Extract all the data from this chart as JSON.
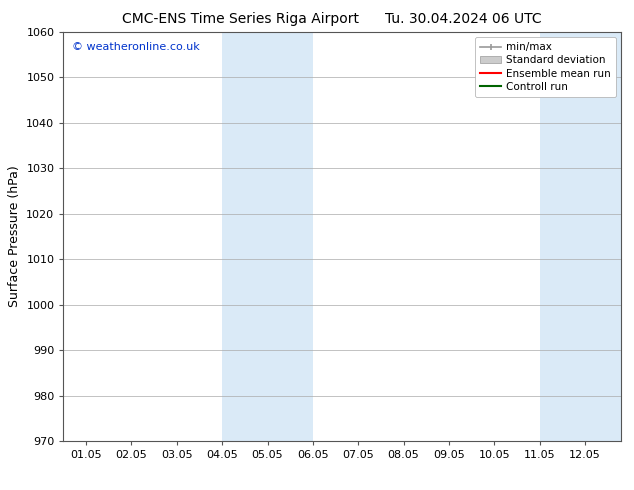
{
  "title_left": "CMC-ENS Time Series Riga Airport",
  "title_right": "Tu. 30.04.2024 06 UTC",
  "ylabel": "Surface Pressure (hPa)",
  "ylim": [
    970,
    1060
  ],
  "yticks": [
    970,
    980,
    990,
    1000,
    1010,
    1020,
    1030,
    1040,
    1050,
    1060
  ],
  "xtick_labels": [
    "01.05",
    "02.05",
    "03.05",
    "04.05",
    "05.05",
    "06.05",
    "07.05",
    "08.05",
    "09.05",
    "10.05",
    "11.05",
    "12.05"
  ],
  "xtick_positions": [
    0,
    1,
    2,
    3,
    4,
    5,
    6,
    7,
    8,
    9,
    10,
    11
  ],
  "x_min": -0.5,
  "x_max": 11.8,
  "shaded_bands": [
    {
      "x_start": 3.0,
      "x_end": 5.0
    },
    {
      "x_start": 10.0,
      "x_end": 11.8
    }
  ],
  "shade_color": "#daeaf7",
  "watermark_text": "© weatheronline.co.uk",
  "watermark_color": "#0033cc",
  "bg_color": "#ffffff",
  "grid_color": "#aaaaaa",
  "spine_color": "#555555",
  "font_size": 8,
  "title_fontsize": 10,
  "legend_fontsize": 7.5
}
